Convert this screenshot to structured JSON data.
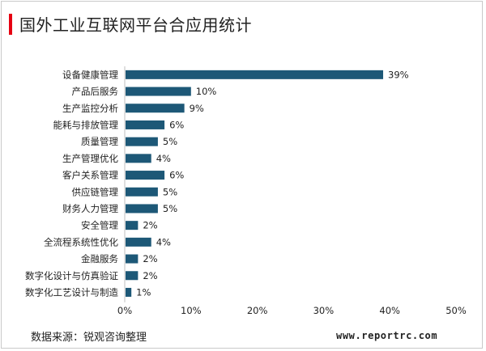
{
  "header": {
    "title": "国外工业互联网平台合应用统计"
  },
  "footer": {
    "source": "数据来源：锐观咨询整理",
    "website": "www.reportrc.com"
  },
  "colors": {
    "bar": "#1d5877",
    "accent": "#e60012",
    "axis": "#bfbfbf",
    "text": "#222222"
  },
  "chart_data": {
    "type": "bar",
    "orientation": "horizontal",
    "categories": [
      "设备健康管理",
      "产品后服务",
      "生产监控分析",
      "能耗与排放管理",
      "质量管理",
      "生产管理优化",
      "客户关系管理",
      "供应链管理",
      "财务人力管理",
      "安全管理",
      "全流程系统性优化",
      "金融服务",
      "数字化设计与仿真验证",
      "数字化工艺设计与制造"
    ],
    "values": [
      39,
      10,
      9,
      6,
      5,
      4,
      6,
      5,
      5,
      2,
      4,
      2,
      2,
      1
    ],
    "value_labels": [
      "39%",
      "10%",
      "9%",
      "6%",
      "5%",
      "4%",
      "6%",
      "5%",
      "5%",
      "2%",
      "4%",
      "2%",
      "2%",
      "1%"
    ],
    "xlim": [
      0,
      50
    ],
    "xticks": [
      0,
      10,
      20,
      30,
      40,
      50
    ],
    "xtick_labels": [
      "0%",
      "10%",
      "20%",
      "30%",
      "40%",
      "50%"
    ],
    "grid": false,
    "legend": false,
    "xlabel": "",
    "ylabel": ""
  }
}
